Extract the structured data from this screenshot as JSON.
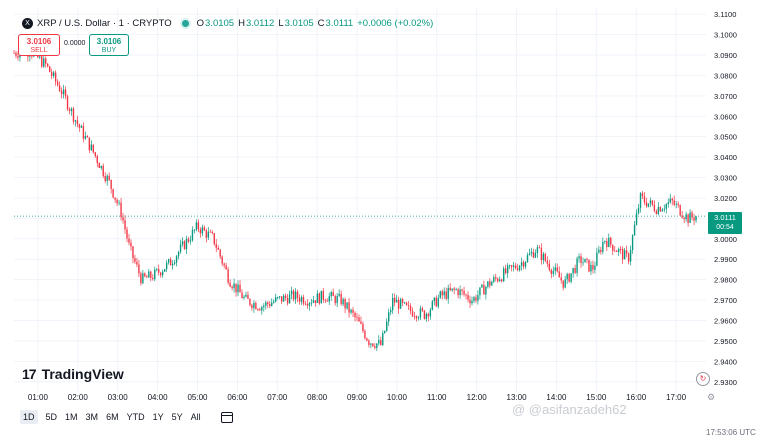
{
  "header": {
    "symbol_icon": "X",
    "title": "XRP / U.S. Dollar · 1 · CRYPTO",
    "open_label": "O",
    "open": "3.0105",
    "high_label": "H",
    "high": "3.0112",
    "low_label": "L",
    "low": "3.0105",
    "close_label": "C",
    "close": "3.0111",
    "change": "+0.0006 (+0.02%)"
  },
  "trade": {
    "sell_price": "3.0106",
    "sell_label": "SELL",
    "spread": "0.0000",
    "buy_price": "3.0106",
    "buy_label": "BUY"
  },
  "price_tag": {
    "price": "3.0111",
    "countdown": "00:54"
  },
  "logo": {
    "mark": "17",
    "text": "TradingView"
  },
  "ranges": {
    "items": [
      "1D",
      "5D",
      "1M",
      "3M",
      "6M",
      "YTD",
      "1Y",
      "5Y",
      "All"
    ],
    "active": "1D"
  },
  "icons": {
    "calendar": "calendar-icon",
    "reload": "reload-icon",
    "settings": "settings-icon",
    "symbol": "xrp-logo-icon"
  },
  "colors": {
    "up": "#089981",
    "down": "#f23645",
    "grid": "#f0f3fa",
    "axis_text": "#131722"
  },
  "watermark": "@ @asifanzadeh62",
  "bottom_time": "17:53:06 UTC",
  "chart_data": {
    "type": "candlestick",
    "title": "",
    "xlabel": "",
    "ylabel": "",
    "y_ticks": [
      "3.1100",
      "3.1000",
      "3.0900",
      "3.0800",
      "3.0700",
      "3.0600",
      "3.0500",
      "3.0400",
      "3.0300",
      "3.0200",
      "3.0100",
      "3.0000",
      "2.9900",
      "2.9800",
      "2.9700",
      "2.9600",
      "2.9500",
      "2.9400",
      "2.9300"
    ],
    "x_ticks": [
      "01:00",
      "02:00",
      "03:00",
      "04:00",
      "05:00",
      "06:00",
      "07:00",
      "08:00",
      "09:00",
      "10:00",
      "11:00",
      "12:00",
      "13:00",
      "14:00",
      "15:00",
      "16:00",
      "17:00"
    ],
    "ylim": [
      2.925,
      3.113
    ],
    "xlim_hours": [
      0.4,
      17.75
    ],
    "last_price": 3.0111,
    "path_hours": [
      0.4,
      0.8,
      1.2,
      1.6,
      2.0,
      2.4,
      2.8,
      3.1,
      3.3,
      3.6,
      3.9,
      4.3,
      4.7,
      5.0,
      5.4,
      5.8,
      6.2,
      6.6,
      7.0,
      7.4,
      7.8,
      8.2,
      8.6,
      9.0,
      9.3,
      9.6,
      9.9,
      10.3,
      10.7,
      11.1,
      11.5,
      11.9,
      12.3,
      12.7,
      13.1,
      13.5,
      13.9,
      14.2,
      14.6,
      14.9,
      15.2,
      15.5,
      15.8,
      16.1,
      16.5,
      16.9,
      17.3,
      17.5
    ],
    "path_close": [
      3.091,
      3.092,
      3.085,
      3.072,
      3.056,
      3.042,
      3.027,
      3.012,
      2.995,
      2.98,
      2.982,
      2.988,
      2.998,
      3.006,
      3.0,
      2.98,
      2.97,
      2.967,
      2.97,
      2.972,
      2.97,
      2.972,
      2.97,
      2.96,
      2.95,
      2.948,
      2.97,
      2.965,
      2.963,
      2.972,
      2.975,
      2.97,
      2.978,
      2.983,
      2.988,
      2.995,
      2.985,
      2.978,
      2.99,
      2.985,
      3.0,
      2.995,
      2.99,
      3.02,
      3.015,
      3.018,
      3.01,
      3.0111
    ]
  }
}
